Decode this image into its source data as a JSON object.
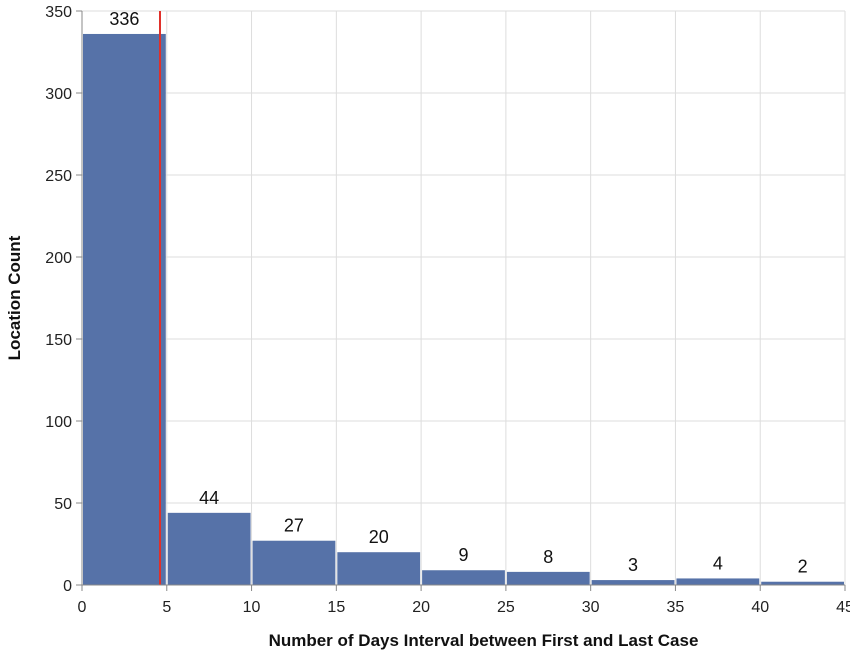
{
  "chart_data": {
    "type": "bar",
    "xlabel": "Number of Days Interval between First and Last Case",
    "ylabel": "Location Count",
    "bins": [
      {
        "x0": 0,
        "x1": 5,
        "value": 336,
        "label": "336"
      },
      {
        "x0": 5,
        "x1": 10,
        "value": 44,
        "label": "44"
      },
      {
        "x0": 10,
        "x1": 15,
        "value": 27,
        "label": "27"
      },
      {
        "x0": 15,
        "x1": 20,
        "value": 20,
        "label": "20"
      },
      {
        "x0": 20,
        "x1": 25,
        "value": 9,
        "label": "9"
      },
      {
        "x0": 25,
        "x1": 30,
        "value": 8,
        "label": "8"
      },
      {
        "x0": 30,
        "x1": 35,
        "value": 3,
        "label": "3"
      },
      {
        "x0": 35,
        "x1": 40,
        "value": 4,
        "label": "4"
      },
      {
        "x0": 40,
        "x1": 45,
        "value": 2,
        "label": "2"
      }
    ],
    "xlim": [
      0,
      45
    ],
    "ylim": [
      0,
      350
    ],
    "x_ticks": [
      "0",
      "5",
      "10",
      "15",
      "20",
      "25",
      "30",
      "35",
      "40",
      "45"
    ],
    "y_ticks": [
      "0",
      "50",
      "100",
      "150",
      "200",
      "250",
      "300",
      "350"
    ],
    "reference_line": {
      "x": 4.6,
      "color": "#e0302a"
    },
    "bar_color": "#5672a8",
    "grid": true,
    "legend": "none"
  }
}
